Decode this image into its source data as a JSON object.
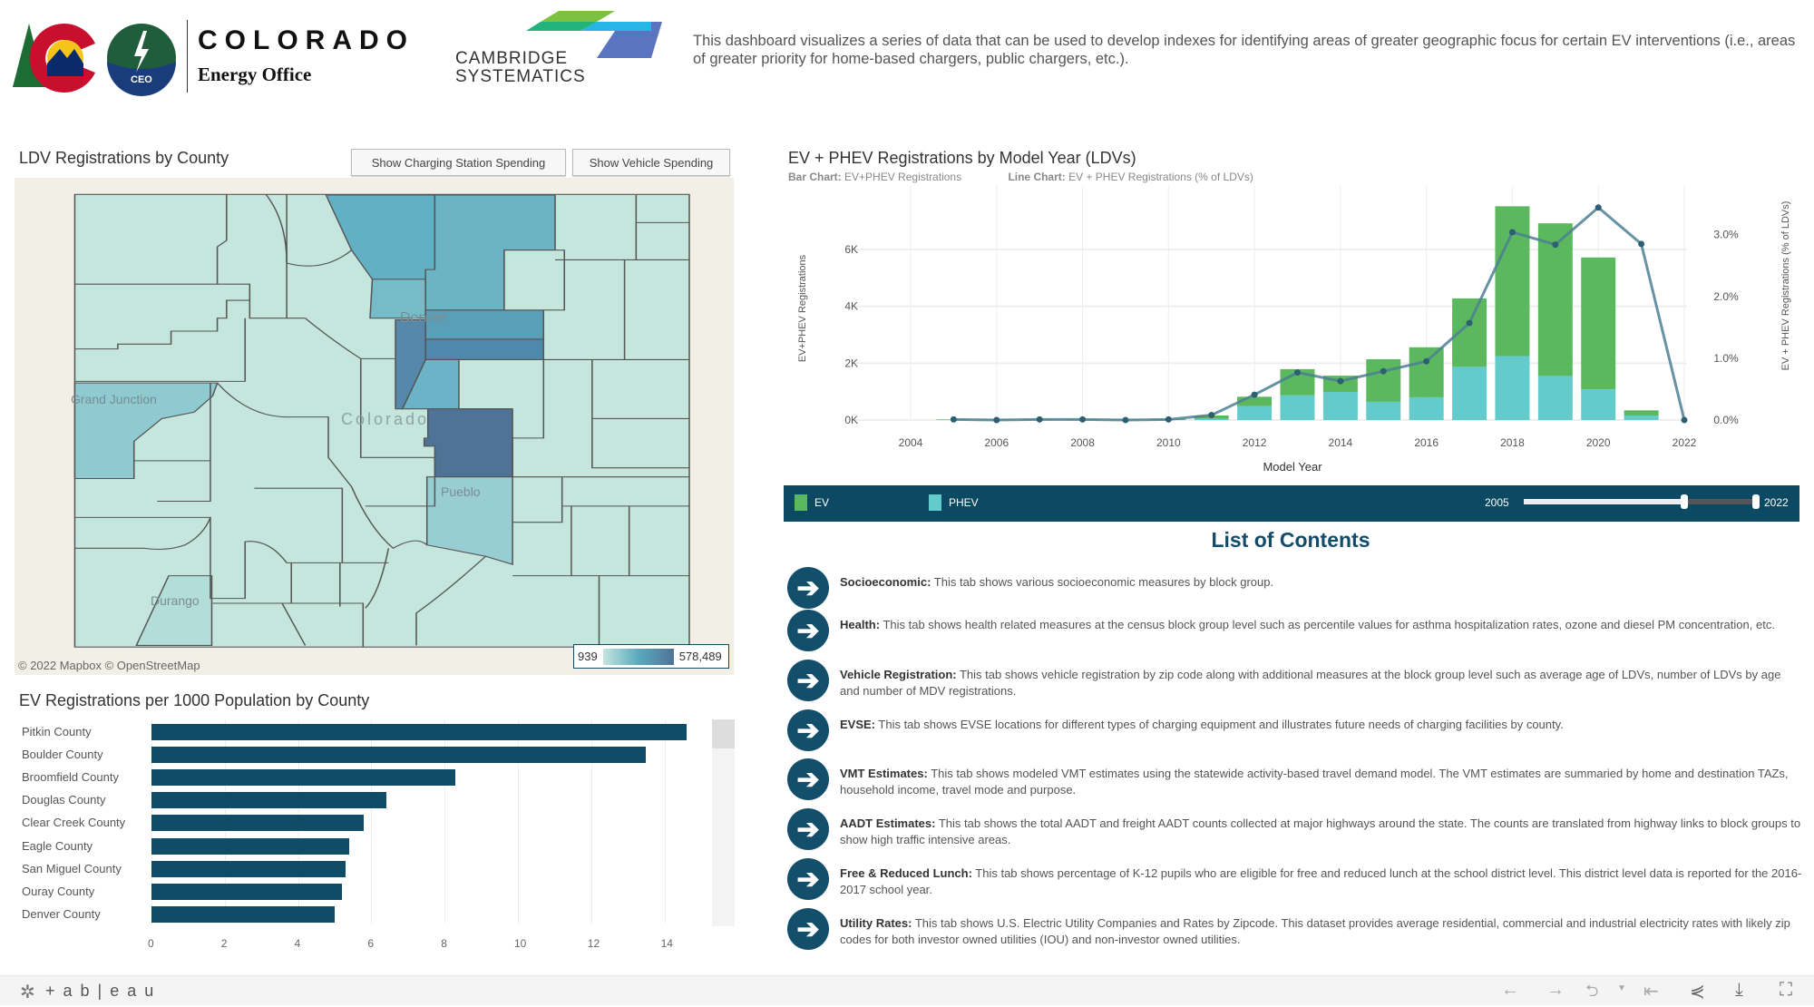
{
  "header": {
    "colorado_logo_text": "COLORADO",
    "energy_office_text": "Energy Office",
    "ceo_badge": "CEO",
    "cambridge_logo_line1": "CAMBRIDGE",
    "cambridge_logo_line2": "SYSTEMATICS",
    "description": "This dashboard visualizes a series of data that can be used to develop indexes for identifying areas of greater geographic focus for certain EV interventions (i.e., areas of greater priority for home-based chargers, public chargers, etc.)."
  },
  "map_panel": {
    "title": "LDV Registrations by County",
    "button_charging": "Show Charging Station Spending",
    "button_vehicle": "Show Vehicle Spending",
    "labels": {
      "denver": "Denver",
      "grand_junction": "Grand Junction",
      "colorado": "Colorado",
      "pueblo": "Pueblo",
      "durango": "Durango"
    },
    "attribution": "© 2022 Mapbox  © OpenStreetMap",
    "legend_min": "939",
    "legend_max": "578,489",
    "colors": {
      "low": "#c4e6dc",
      "high": "#4f7396"
    }
  },
  "county_chart": {
    "title": "EV Registrations per 1000 Population by County",
    "chart_data": {
      "type": "bar",
      "orientation": "horizontal",
      "categories": [
        "Pitkin County",
        "Boulder County",
        "Broomfield County",
        "Douglas County",
        "Clear Creek County",
        "Eagle County",
        "San Miguel County",
        "Ouray County",
        "Denver County"
      ],
      "values": [
        14.6,
        13.5,
        8.3,
        6.4,
        5.8,
        5.4,
        5.3,
        5.2,
        5.0
      ],
      "xticks": [
        "0",
        "2",
        "4",
        "6",
        "8",
        "10",
        "12",
        "14"
      ],
      "xlim": [
        0,
        15
      ],
      "color": "#0e4c68"
    }
  },
  "model_year_chart": {
    "title": "EV + PHEV Registrations by Model Year (LDVs)",
    "subtitle_bar_label": "Bar Chart:",
    "subtitle_bar_value": " EV+PHEV Registrations",
    "subtitle_line_label": "Line Chart:",
    "subtitle_line_value": " EV + PHEV Registrations (% of LDVs)",
    "chart_data": {
      "type": "bar+line",
      "x": [
        2005,
        2006,
        2007,
        2008,
        2009,
        2010,
        2011,
        2012,
        2013,
        2014,
        2015,
        2016,
        2017,
        2018,
        2019,
        2020,
        2021,
        2022
      ],
      "series": [
        {
          "name": "EV",
          "type": "stacked-bar",
          "color": "#5cb85f",
          "values": [
            20,
            20,
            20,
            20,
            20,
            30,
            120,
            330,
            920,
            570,
            1500,
            1760,
            2410,
            5270,
            5370,
            4640,
            180,
            0
          ]
        },
        {
          "name": "PHEV",
          "type": "stacked-bar",
          "color": "#63cbcc",
          "values": [
            0,
            0,
            0,
            0,
            0,
            0,
            40,
            490,
            870,
            990,
            640,
            800,
            1870,
            2250,
            1550,
            1080,
            160,
            0
          ]
        },
        {
          "name": "EV + PHEV Registrations (% of LDVs)",
          "type": "line",
          "axis": "right",
          "color": "#4b7f93",
          "values": [
            0.01,
            0.0,
            0.01,
            0.01,
            0.0,
            0.01,
            0.08,
            0.41,
            0.77,
            0.63,
            0.79,
            0.95,
            1.57,
            3.04,
            2.84,
            3.44,
            2.85,
            0.0
          ]
        }
      ],
      "xlabel": "Model Year",
      "ylabel": "EV+PHEV Registrations",
      "y2label": "EV + PHEV Registrations (% of LDVs)",
      "xticks": [
        "2004",
        "2006",
        "2008",
        "2010",
        "2012",
        "2014",
        "2016",
        "2018",
        "2020",
        "2022"
      ],
      "yticks": [
        "0K",
        "2K",
        "4K",
        "6K"
      ],
      "y2ticks": [
        "0.0%",
        "1.0%",
        "2.0%",
        "3.0%"
      ],
      "xlim": [
        2004,
        2022
      ],
      "ylim": [
        0,
        7500
      ],
      "y2lim": [
        0,
        3.5
      ],
      "grid": true
    },
    "legend": {
      "ev": "EV",
      "phev": "PHEV",
      "ev_color": "#5cb85f",
      "phev_color": "#63cbcc"
    },
    "slider": {
      "min_label": "2005",
      "max_label": "2022",
      "low_fraction": 0.0,
      "handle_fraction": 0.69,
      "high_fraction": 1.0
    }
  },
  "toc": {
    "title": "List of Contents",
    "items": [
      {
        "name": "Socioeconomic:",
        "text": " This tab shows various socioeconomic measures by block group."
      },
      {
        "name": "Health:",
        "text": " This tab shows health related measures at the census block group level such as percentile values for asthma hospitalization rates, ozone and diesel PM concentration, etc."
      },
      {
        "name": "Vehicle Registration:",
        "text": " This tab shows vehicle registration by zip code along with additional measures at the block group level such as average age of LDVs, number of LDVs by age and number of MDV registrations."
      },
      {
        "name": "EVSE:",
        "text": " This tab shows EVSE locations for different types of charging equipment and illustrates future needs of charging facilities by county."
      },
      {
        "name": "VMT Estimates:",
        "text": " This tab shows modeled VMT estimates using the statewide activity-based travel demand model. The VMT estimates are summaried by home and destination TAZs, household income, travel mode and purpose."
      },
      {
        "name": "AADT Estimates:",
        "text": " This tab shows the total AADT and freight AADT counts collected at major highways around the state. The counts are translated from highway links to block groups to show high traffic intensive areas."
      },
      {
        "name": "Free & Reduced Lunch:",
        "text": " This tab shows percentage of K-12 pupils who are eligible for free and reduced lunch at the school district level. This district level data is reported for the 2016-2017 school year."
      },
      {
        "name": "Utility Rates:",
        "text": " This tab shows U.S. Electric Utility Companies and Rates by Zipcode. This dataset provides average residential, commercial and industrial electricity rates with likely zip codes for both investor owned utilities (IOU) and non-investor owned utilities."
      }
    ]
  },
  "footer": {
    "tableau_logo": "+ a b | e a u"
  }
}
